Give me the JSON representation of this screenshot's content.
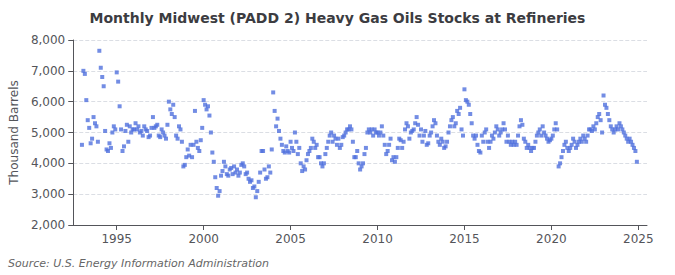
{
  "chart_data": {
    "type": "scatter",
    "title": "Monthly Midwest (PADD 2) Heavy Gas Oils Stocks at Refineries",
    "ylabel": "Thousand Barrels",
    "annotation": "Source: U.S. Energy Information Administration",
    "marker": "square",
    "grid": true,
    "xlim": [
      1992.5,
      2025.5
    ],
    "xticks": [
      1995,
      2000,
      2005,
      2010,
      2015,
      2020,
      2025
    ],
    "ylim": [
      2000,
      8000
    ],
    "yticks": [
      {
        "value": 2000,
        "label": "2,000"
      },
      {
        "value": 3000,
        "label": "3,000"
      },
      {
        "value": 4000,
        "label": "4,000"
      },
      {
        "value": 5000,
        "label": "5,000"
      },
      {
        "value": 6000,
        "label": "6,000"
      },
      {
        "value": 7000,
        "label": "7,000"
      },
      {
        "value": 8000,
        "label": "8,000"
      }
    ],
    "x": [
      1993.0,
      1993.083,
      1993.167,
      1993.25,
      1993.333,
      1993.417,
      1993.5,
      1993.583,
      1993.667,
      1993.75,
      1993.833,
      1993.917,
      1994.0,
      1994.083,
      1994.167,
      1994.25,
      1994.333,
      1994.417,
      1994.5,
      1994.583,
      1994.667,
      1994.75,
      1994.833,
      1994.917,
      1995.0,
      1995.083,
      1995.167,
      1995.25,
      1995.333,
      1995.417,
      1995.5,
      1995.583,
      1995.667,
      1995.75,
      1995.833,
      1995.917,
      1996.0,
      1996.083,
      1996.167,
      1996.25,
      1996.333,
      1996.417,
      1996.5,
      1996.583,
      1996.667,
      1996.75,
      1996.833,
      1996.917,
      1997.0,
      1997.083,
      1997.167,
      1997.25,
      1997.333,
      1997.417,
      1997.5,
      1997.583,
      1997.667,
      1997.75,
      1997.833,
      1997.917,
      1998.0,
      1998.083,
      1998.167,
      1998.25,
      1998.333,
      1998.417,
      1998.5,
      1998.583,
      1998.667,
      1998.75,
      1998.833,
      1998.917,
      1999.0,
      1999.083,
      1999.167,
      1999.25,
      1999.333,
      1999.417,
      1999.5,
      1999.583,
      1999.667,
      1999.75,
      1999.833,
      1999.917,
      2000.0,
      2000.083,
      2000.167,
      2000.25,
      2000.333,
      2000.417,
      2000.5,
      2000.583,
      2000.667,
      2000.75,
      2000.833,
      2000.917,
      2001.0,
      2001.083,
      2001.167,
      2001.25,
      2001.333,
      2001.417,
      2001.5,
      2001.583,
      2001.667,
      2001.75,
      2001.833,
      2001.917,
      2002.0,
      2002.083,
      2002.167,
      2002.25,
      2002.333,
      2002.417,
      2002.5,
      2002.583,
      2002.667,
      2002.75,
      2002.833,
      2002.917,
      2003.0,
      2003.083,
      2003.167,
      2003.25,
      2003.333,
      2003.417,
      2003.5,
      2003.583,
      2003.667,
      2003.75,
      2003.833,
      2003.917,
      2004.0,
      2004.083,
      2004.167,
      2004.25,
      2004.333,
      2004.417,
      2004.5,
      2004.583,
      2004.667,
      2004.75,
      2004.833,
      2004.917,
      2005.0,
      2005.083,
      2005.167,
      2005.25,
      2005.333,
      2005.417,
      2005.5,
      2005.583,
      2005.667,
      2005.75,
      2005.833,
      2005.917,
      2006.0,
      2006.083,
      2006.167,
      2006.25,
      2006.333,
      2006.417,
      2006.5,
      2006.583,
      2006.667,
      2006.75,
      2006.833,
      2006.917,
      2007.0,
      2007.083,
      2007.167,
      2007.25,
      2007.333,
      2007.417,
      2007.5,
      2007.583,
      2007.667,
      2007.75,
      2007.833,
      2007.917,
      2008.0,
      2008.083,
      2008.167,
      2008.25,
      2008.333,
      2008.417,
      2008.5,
      2008.583,
      2008.667,
      2008.75,
      2008.833,
      2008.917,
      2009.0,
      2009.083,
      2009.167,
      2009.25,
      2009.333,
      2009.417,
      2009.5,
      2009.583,
      2009.667,
      2009.75,
      2009.833,
      2009.917,
      2010.0,
      2010.083,
      2010.167,
      2010.25,
      2010.333,
      2010.417,
      2010.5,
      2010.583,
      2010.667,
      2010.75,
      2010.833,
      2010.917,
      2011.0,
      2011.083,
      2011.167,
      2011.25,
      2011.333,
      2011.417,
      2011.5,
      2011.583,
      2011.667,
      2011.75,
      2011.833,
      2011.917,
      2012.0,
      2012.083,
      2012.167,
      2012.25,
      2012.333,
      2012.417,
      2012.5,
      2012.583,
      2012.667,
      2012.75,
      2012.833,
      2012.917,
      2013.0,
      2013.083,
      2013.167,
      2013.25,
      2013.333,
      2013.417,
      2013.5,
      2013.583,
      2013.667,
      2013.75,
      2013.833,
      2013.917,
      2014.0,
      2014.083,
      2014.167,
      2014.25,
      2014.333,
      2014.417,
      2014.5,
      2014.583,
      2014.667,
      2014.75,
      2014.833,
      2014.917,
      2015.0,
      2015.083,
      2015.167,
      2015.25,
      2015.333,
      2015.417,
      2015.5,
      2015.583,
      2015.667,
      2015.75,
      2015.833,
      2015.917,
      2016.0,
      2016.083,
      2016.167,
      2016.25,
      2016.333,
      2016.417,
      2016.5,
      2016.583,
      2016.667,
      2016.75,
      2016.833,
      2016.917,
      2017.0,
      2017.083,
      2017.167,
      2017.25,
      2017.333,
      2017.417,
      2017.5,
      2017.583,
      2017.667,
      2017.75,
      2017.833,
      2017.917,
      2018.0,
      2018.083,
      2018.167,
      2018.25,
      2018.333,
      2018.417,
      2018.5,
      2018.583,
      2018.667,
      2018.75,
      2018.833,
      2018.917,
      2019.0,
      2019.083,
      2019.167,
      2019.25,
      2019.333,
      2019.417,
      2019.5,
      2019.583,
      2019.667,
      2019.75,
      2019.833,
      2019.917,
      2020.0,
      2020.083,
      2020.167,
      2020.25,
      2020.333,
      2020.417,
      2020.5,
      2020.583,
      2020.667,
      2020.75,
      2020.833,
      2020.917,
      2021.0,
      2021.083,
      2021.167,
      2021.25,
      2021.333,
      2021.417,
      2021.5,
      2021.583,
      2021.667,
      2021.75,
      2021.833,
      2021.917,
      2022.0,
      2022.083,
      2022.167,
      2022.25,
      2022.333,
      2022.417,
      2022.5,
      2022.583,
      2022.667,
      2022.75,
      2022.833,
      2022.917,
      2023.0,
      2023.083,
      2023.167,
      2023.25,
      2023.333,
      2023.417,
      2023.5,
      2023.583,
      2023.667,
      2023.75,
      2023.833,
      2023.917,
      2024.0,
      2024.083,
      2024.167,
      2024.25,
      2024.333,
      2024.417,
      2024.5,
      2024.583,
      2024.667,
      2024.75,
      2024.833,
      2024.917
    ],
    "values": [
      4600,
      7000,
      6900,
      6050,
      5400,
      5150,
      4650,
      4800,
      5500,
      5300,
      5200,
      4700,
      7650,
      7100,
      6800,
      6500,
      5050,
      4450,
      4400,
      4650,
      4500,
      5000,
      5200,
      5100,
      6950,
      6650,
      5850,
      5100,
      4400,
      4550,
      5050,
      5250,
      4700,
      5200,
      5000,
      5100,
      5100,
      5300,
      5100,
      5200,
      5000,
      5050,
      4900,
      5200,
      5100,
      5050,
      4850,
      4900,
      5150,
      5500,
      5150,
      5200,
      5250,
      4900,
      4850,
      5100,
      5000,
      4900,
      4800,
      5250,
      6000,
      5750,
      5600,
      5900,
      5500,
      4900,
      4800,
      5200,
      5100,
      4700,
      3900,
      3950,
      4200,
      4450,
      4250,
      4600,
      4200,
      4600,
      5700,
      4700,
      4500,
      4400,
      4750,
      5150,
      6050,
      5900,
      5750,
      5850,
      5550,
      5000,
      4350,
      4050,
      3550,
      3200,
      2950,
      3100,
      3600,
      3750,
      4050,
      3900,
      3650,
      3600,
      3800,
      3850,
      3650,
      3900,
      3700,
      3800,
      3600,
      3700,
      3950,
      4000,
      3900,
      3650,
      3700,
      3500,
      3400,
      3450,
      3200,
      3250,
      2900,
      3100,
      3400,
      3700,
      4400,
      4400,
      3800,
      3500,
      3550,
      3900,
      3700,
      4450,
      6300,
      5700,
      5200,
      5450,
      5050,
      4800,
      4600,
      4400,
      4350,
      4550,
      4400,
      4350,
      4700,
      4500,
      4400,
      5000,
      4700,
      4300,
      4500,
      4000,
      3750,
      3900,
      3800,
      4100,
      4300,
      4400,
      4500,
      4800,
      4700,
      4500,
      4600,
      4200,
      4200,
      4000,
      3900,
      4000,
      4300,
      4500,
      4700,
      4900,
      5000,
      4700,
      4900,
      4800,
      4600,
      4800,
      4500,
      4600,
      4850,
      4900,
      5000,
      5100,
      5100,
      5200,
      5100,
      4700,
      4200,
      4200,
      4400,
      4000,
      3800,
      3900,
      4000,
      4300,
      4500,
      5000,
      5100,
      5000,
      5100,
      4900,
      5100,
      5000,
      5000,
      4900,
      5000,
      5200,
      4900,
      4600,
      4300,
      4400,
      4600,
      4800,
      4100,
      4200,
      4050,
      4200,
      4500,
      4800,
      4750,
      4500,
      4700,
      5100,
      5300,
      5200,
      4800,
      5000,
      5050,
      5100,
      5300,
      5500,
      5250,
      4900,
      5100,
      4700,
      4900,
      5050,
      4600,
      4650,
      4900,
      5000,
      5200,
      5400,
      5300,
      4900,
      4700,
      4600,
      4800,
      4700,
      4500,
      4550,
      4700,
      5000,
      5200,
      5400,
      5500,
      5200,
      5300,
      5700,
      5600,
      5800,
      5100,
      4900,
      6400,
      6050,
      6000,
      5900,
      5600,
      5300,
      4900,
      4800,
      4900,
      4600,
      4400,
      4350,
      4900,
      4700,
      5000,
      5100,
      4700,
      4500,
      4700,
      4900,
      4800,
      5000,
      5200,
      5100,
      4900,
      5000,
      5100,
      5300,
      5100,
      4700,
      4900,
      4700,
      4600,
      4700,
      4600,
      4700,
      4600,
      4900,
      5200,
      5400,
      5250,
      4800,
      4700,
      4500,
      4600,
      4500,
      4400,
      4500,
      4500,
      4700,
      4900,
      5000,
      5100,
      4900,
      5200,
      5000,
      4900,
      4800,
      4700,
      4750,
      4800,
      4900,
      5100,
      5300,
      5100,
      3900,
      4000,
      4200,
      4400,
      4600,
      4700,
      4500,
      4400,
      4500,
      4600,
      4800,
      4700,
      4500,
      4600,
      4700,
      4800,
      4700,
      4900,
      4800,
      4700,
      4900,
      5100,
      5100,
      5050,
      5200,
      5100,
      5300,
      5500,
      5600,
      5400,
      5000,
      6200,
      5900,
      5800,
      5600,
      5400,
      5200,
      5100,
      5000,
      5100,
      5200,
      5100,
      5300,
      5200,
      5100,
      5000,
      4900,
      4800,
      4700,
      4800,
      4700,
      4600,
      4500,
      4400,
      4050
    ]
  }
}
